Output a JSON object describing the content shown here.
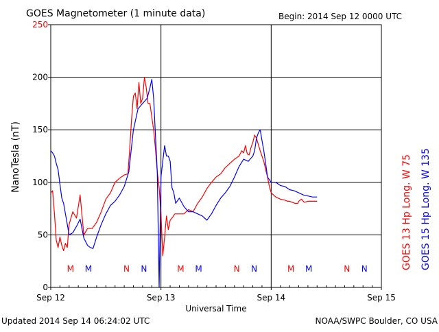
{
  "header": {
    "title": "GOES Magnetometer (1 minute data)",
    "begin": "Begin:  2014 Sep 12 0000 UTC"
  },
  "footer": {
    "updated": "Updated 2014 Sep 14 06:24:02 UTC",
    "credit": "NOAA/SWPC Boulder, CO USA"
  },
  "chart_data": {
    "type": "line",
    "title": "GOES Magnetometer (1 minute data)",
    "xlabel": "Universal Time",
    "ylabel": "NanoTesla (nT)",
    "xlim": [
      0,
      72
    ],
    "x_unit": "hours since 2014 Sep 12 0000 UTC",
    "x_ticks": [
      {
        "t": 0,
        "label": "Sep 12"
      },
      {
        "t": 24,
        "label": "Sep 13"
      },
      {
        "t": 48,
        "label": "Sep 14"
      },
      {
        "t": 72,
        "label": "Sep 15"
      }
    ],
    "ylim": [
      0,
      250
    ],
    "y_ticks": [
      0,
      50,
      100,
      150,
      200,
      250
    ],
    "grid": true,
    "legend_placement": "right-vertical",
    "series": [
      {
        "name": "GOES 13 Hp",
        "legend": "GOES 13 Hp   Long. W 75",
        "color": "#ff0000",
        "x": [
          0,
          0.4,
          0.8,
          1.2,
          1.6,
          2.0,
          2.4,
          2.8,
          3.2,
          3.6,
          4.0,
          4.8,
          5.6,
          6.4,
          7.2,
          8.0,
          9.0,
          10.0,
          11.0,
          12.0,
          13.0,
          14.0,
          15.0,
          16.0,
          16.8,
          17.2,
          17.6,
          18.0,
          18.4,
          18.8,
          19.2,
          19.6,
          20.0,
          20.4,
          20.8,
          21.2,
          21.6,
          22.0,
          22.4,
          22.8,
          23.2,
          23.6,
          24.0,
          24.4,
          24.8,
          25.2,
          25.6,
          26.0,
          26.4,
          27.0,
          28.0,
          29.0,
          30.0,
          31.0,
          32.0,
          33.0,
          34.0,
          35.0,
          36.0,
          37.0,
          38.0,
          39.0,
          40.0,
          41.0,
          41.6,
          42.0,
          42.4,
          42.8,
          43.2,
          43.6,
          44.0,
          44.4,
          44.8,
          45.2,
          45.6,
          46.0,
          46.4,
          46.8,
          47.2,
          47.6,
          48.0,
          49.0,
          50.0,
          51.0,
          51.6,
          52.0,
          52.6,
          53.2,
          53.8,
          54.0,
          54.6,
          55.2,
          56.0,
          57.0,
          58.0
        ],
        "values": [
          90,
          92,
          70,
          45,
          38,
          48,
          40,
          35,
          42,
          38,
          60,
          72,
          66,
          88,
          50,
          56,
          56,
          62,
          72,
          84,
          90,
          100,
          104,
          107,
          108,
          132,
          160,
          182,
          185,
          170,
          195,
          175,
          180,
          200,
          190,
          175,
          175,
          162,
          150,
          132,
          110,
          95,
          70,
          30,
          48,
          68,
          55,
          64,
          66,
          70,
          70,
          70,
          74,
          72,
          80,
          86,
          94,
          100,
          105,
          108,
          114,
          118,
          122,
          125,
          130,
          128,
          135,
          127,
          126,
          133,
          138,
          145,
          142,
          136,
          130,
          125,
          120,
          112,
          105,
          96,
          90,
          86,
          84,
          83,
          82,
          82,
          81,
          80,
          80,
          82,
          84,
          81,
          82,
          82,
          82
        ]
      },
      {
        "name": "GOES 15 Hp",
        "legend": "GOES 15 Hp   Long. W 135",
        "color": "#0000ff",
        "x": [
          0,
          0.4,
          0.8,
          1.2,
          1.6,
          2.0,
          2.4,
          2.8,
          3.2,
          3.6,
          4.0,
          4.8,
          5.6,
          6.4,
          7.2,
          8.0,
          8.6,
          9.2,
          10.0,
          11.0,
          12.0,
          13.0,
          14.0,
          15.0,
          16.0,
          17.0,
          18.0,
          19.0,
          20.0,
          21.0,
          21.6,
          22.0,
          22.4,
          22.8,
          23.2,
          23.6,
          24.0,
          24.4,
          24.8,
          25.2,
          25.6,
          26.0,
          26.4,
          26.8,
          27.2,
          28.0,
          29.0,
          30.0,
          31.0,
          32.0,
          33.0,
          34.0,
          35.0,
          36.0,
          37.0,
          38.0,
          39.0,
          40.0,
          41.0,
          42.0,
          43.0,
          44.0,
          44.4,
          44.8,
          45.2,
          45.6,
          46.0,
          46.4,
          46.8,
          47.2,
          48.0,
          49.0,
          50.0,
          51.0,
          52.0,
          53.0,
          54.0,
          55.0,
          56.0,
          57.0,
          58.0
        ],
        "values": [
          130,
          128,
          125,
          118,
          112,
          98,
          85,
          80,
          70,
          60,
          50,
          52,
          58,
          65,
          47,
          40,
          38,
          37,
          48,
          60,
          70,
          78,
          82,
          88,
          96,
          110,
          150,
          170,
          175,
          180,
          190,
          198,
          180,
          145,
          110,
          0,
          105,
          120,
          135,
          125,
          125,
          120,
          95,
          90,
          80,
          85,
          77,
          72,
          72,
          70,
          68,
          64,
          70,
          78,
          85,
          90,
          96,
          105,
          115,
          122,
          120,
          125,
          130,
          142,
          147,
          150,
          140,
          130,
          118,
          105,
          100,
          100,
          97,
          96,
          93,
          92,
          90,
          88,
          87,
          86,
          86
        ]
      }
    ],
    "markers": [
      {
        "t": 4.3,
        "label": "M",
        "color": "#ff0000"
      },
      {
        "t": 8.2,
        "label": "M",
        "color": "#0000ff"
      },
      {
        "t": 16.5,
        "label": "N",
        "color": "#ff0000"
      },
      {
        "t": 20.3,
        "label": "N",
        "color": "#0000ff"
      },
      {
        "t": 28.3,
        "label": "M",
        "color": "#ff0000"
      },
      {
        "t": 32.2,
        "label": "M",
        "color": "#0000ff"
      },
      {
        "t": 40.5,
        "label": "N",
        "color": "#ff0000"
      },
      {
        "t": 44.3,
        "label": "N",
        "color": "#0000ff"
      },
      {
        "t": 52.3,
        "label": "M",
        "color": "#ff0000"
      },
      {
        "t": 56.2,
        "label": "M",
        "color": "#0000ff"
      },
      {
        "t": 64.5,
        "label": "N",
        "color": "#ff0000"
      },
      {
        "t": 68.3,
        "label": "N",
        "color": "#0000ff"
      }
    ],
    "colors": {
      "axis": "#000000",
      "ylabel_top": "#ff0000"
    }
  }
}
